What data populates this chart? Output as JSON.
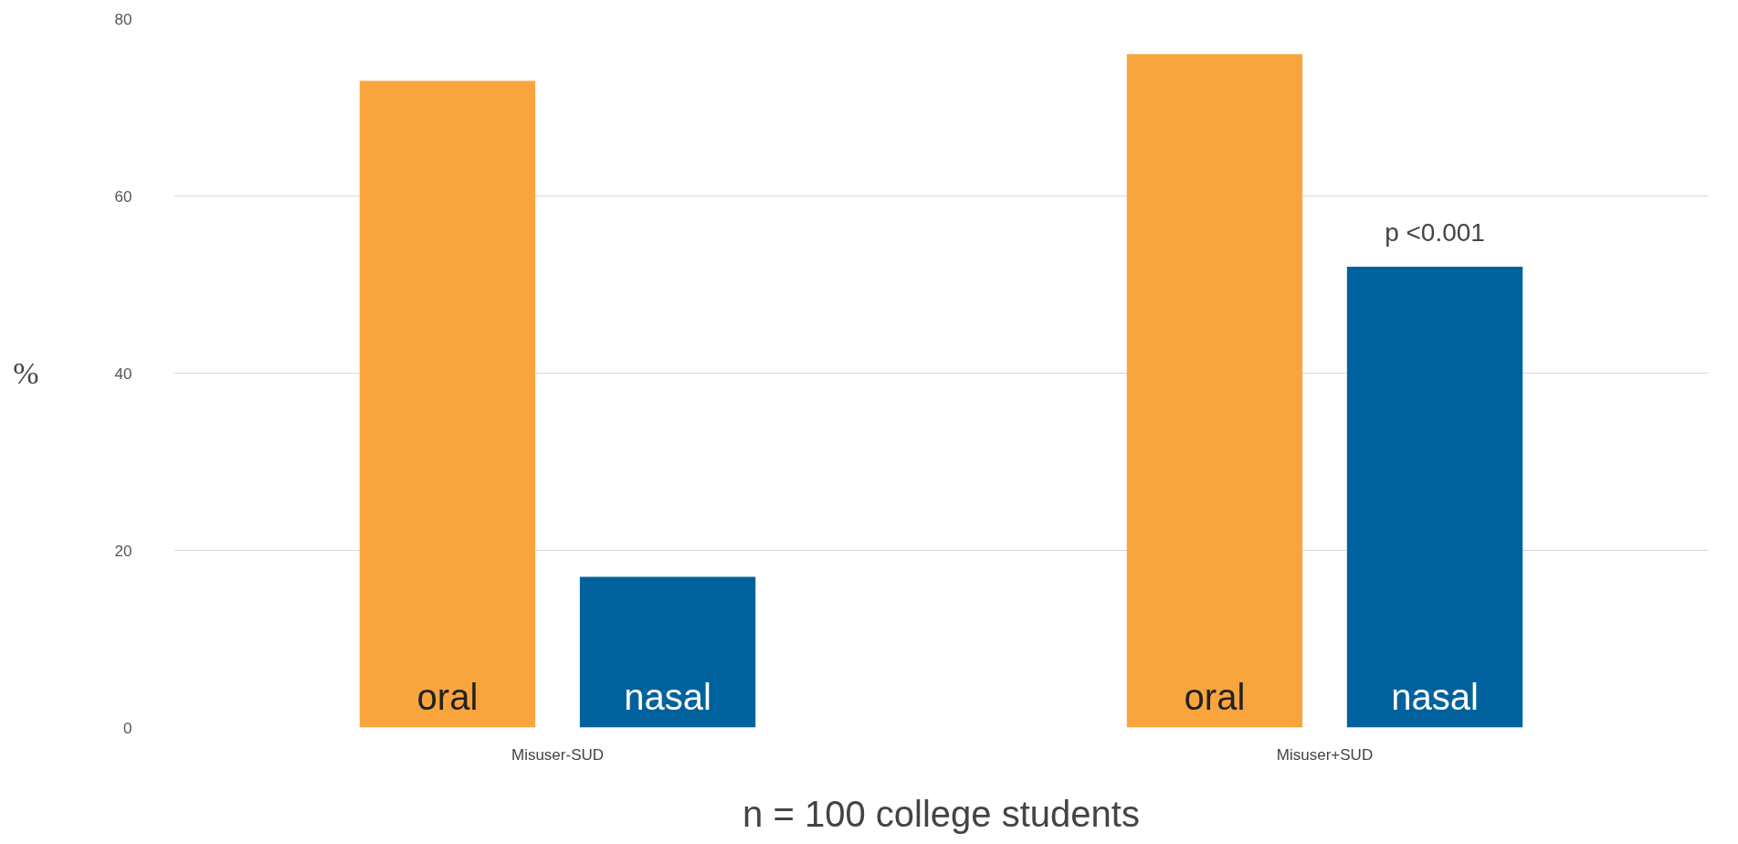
{
  "chart_data": {
    "type": "bar",
    "ylabel": "%",
    "xlabel": "n = 100 college students",
    "categories": [
      "Misuser-SUD",
      "Misuser+SUD"
    ],
    "series": [
      {
        "name": "oral",
        "color": "#f9a53e",
        "values": [
          73,
          76
        ]
      },
      {
        "name": "nasal",
        "color": "#00629d",
        "values": [
          17,
          52
        ]
      }
    ],
    "annotations": [
      "p <0.001"
    ],
    "ylim": [
      0,
      80
    ],
    "yticks": [
      0,
      20,
      40,
      60,
      80
    ],
    "grid": "y"
  }
}
